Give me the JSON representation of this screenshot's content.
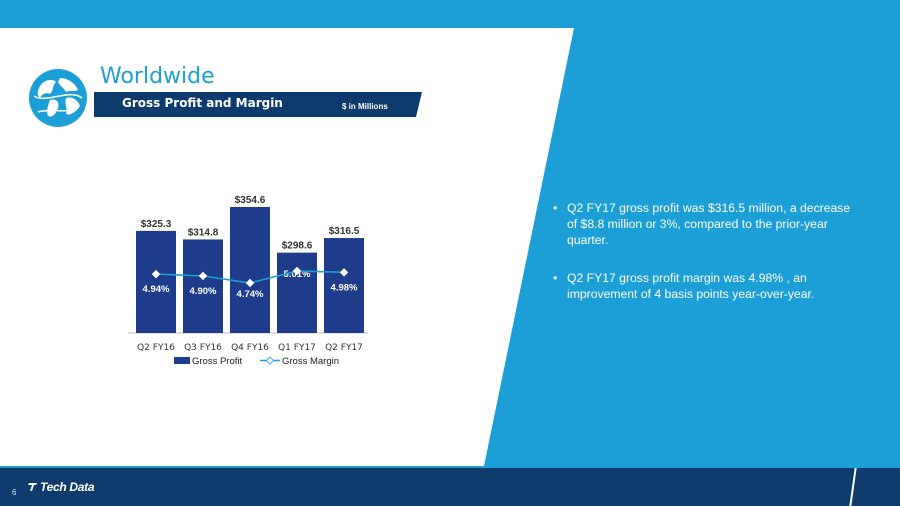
{
  "header": {
    "title": "Worldwide",
    "banner_title": "Gross Profit and Margin",
    "banner_note": "$ in Millions"
  },
  "chart_data": {
    "type": "bar",
    "categories": [
      "Q2 FY16",
      "Q3 FY16",
      "Q4 FY16",
      "Q1 FY17",
      "Q2 FY17"
    ],
    "series": [
      {
        "name": "Gross Profit",
        "type": "bar",
        "values": [
          325.3,
          314.8,
          354.6,
          298.6,
          316.5
        ],
        "labels": [
          "$325.3",
          "$314.8",
          "$354.6",
          "$298.6",
          "$316.5"
        ],
        "color": "#1f3c8c"
      },
      {
        "name": "Gross Margin",
        "type": "line",
        "values": [
          4.94,
          4.9,
          4.74,
          5.01,
          4.98
        ],
        "labels": [
          "4.94%",
          "4.90%",
          "4.74%",
          "5.01%",
          "4.98%"
        ],
        "color": "#1b9fd6"
      }
    ],
    "legend": "bottom",
    "grid": false
  },
  "bullets": [
    "Q2 FY17 gross profit was $316.5 million, a decrease of $8.8 million or 3%, compared to the prior-year quarter.",
    "Q2 FY17 gross profit margin was 4.98% , an improvement of  4 basis points year-over-year."
  ],
  "footer": {
    "page_number": "6",
    "logo_text": "Tech Data"
  },
  "colors": {
    "accent": "#1b9fd6",
    "bar": "#1f3c8c",
    "footer": "#0d3b6e"
  }
}
